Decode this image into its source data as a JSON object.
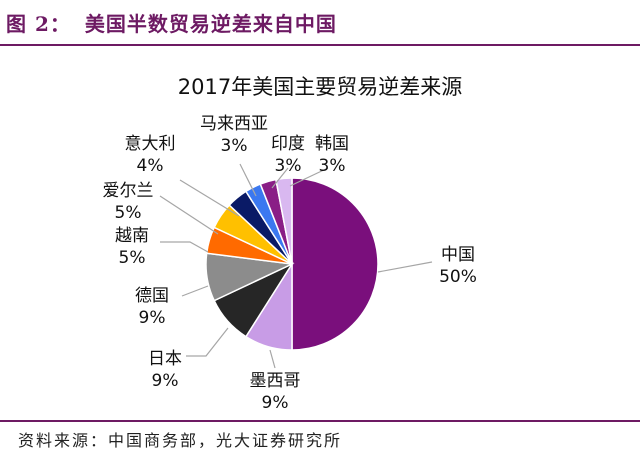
{
  "figure": {
    "label": "图 2：",
    "title": "美国半数贸易逆差来自中国",
    "source": "资料来源：中国商务部，光大证券研究所"
  },
  "chart_data": {
    "type": "pie",
    "title": "2017年美国主要贸易逆差来源",
    "unit": "%",
    "slices": [
      {
        "label": "中国",
        "value": 50,
        "display": "50%",
        "color": "#7a0f7c"
      },
      {
        "label": "墨西哥",
        "value": 9,
        "display": "9%",
        "color": "#c89ce6"
      },
      {
        "label": "日本",
        "value": 9,
        "display": "9%",
        "color": "#262626"
      },
      {
        "label": "德国",
        "value": 9,
        "display": "9%",
        "color": "#8c8c8c"
      },
      {
        "label": "越南",
        "value": 5,
        "display": "5%",
        "color": "#ff6a00"
      },
      {
        "label": "爱尔兰",
        "value": 5,
        "display": "5%",
        "color": "#ffc000"
      },
      {
        "label": "意大利",
        "value": 4,
        "display": "4%",
        "color": "#0a1a66"
      },
      {
        "label": "马来西亚",
        "value": 3,
        "display": "3%",
        "color": "#3b78f0"
      },
      {
        "label": "印度",
        "value": 3,
        "display": "3%",
        "color": "#8a1e86"
      },
      {
        "label": "韩国",
        "value": 3,
        "display": "3%",
        "color": "#d9b8f0"
      }
    ]
  }
}
